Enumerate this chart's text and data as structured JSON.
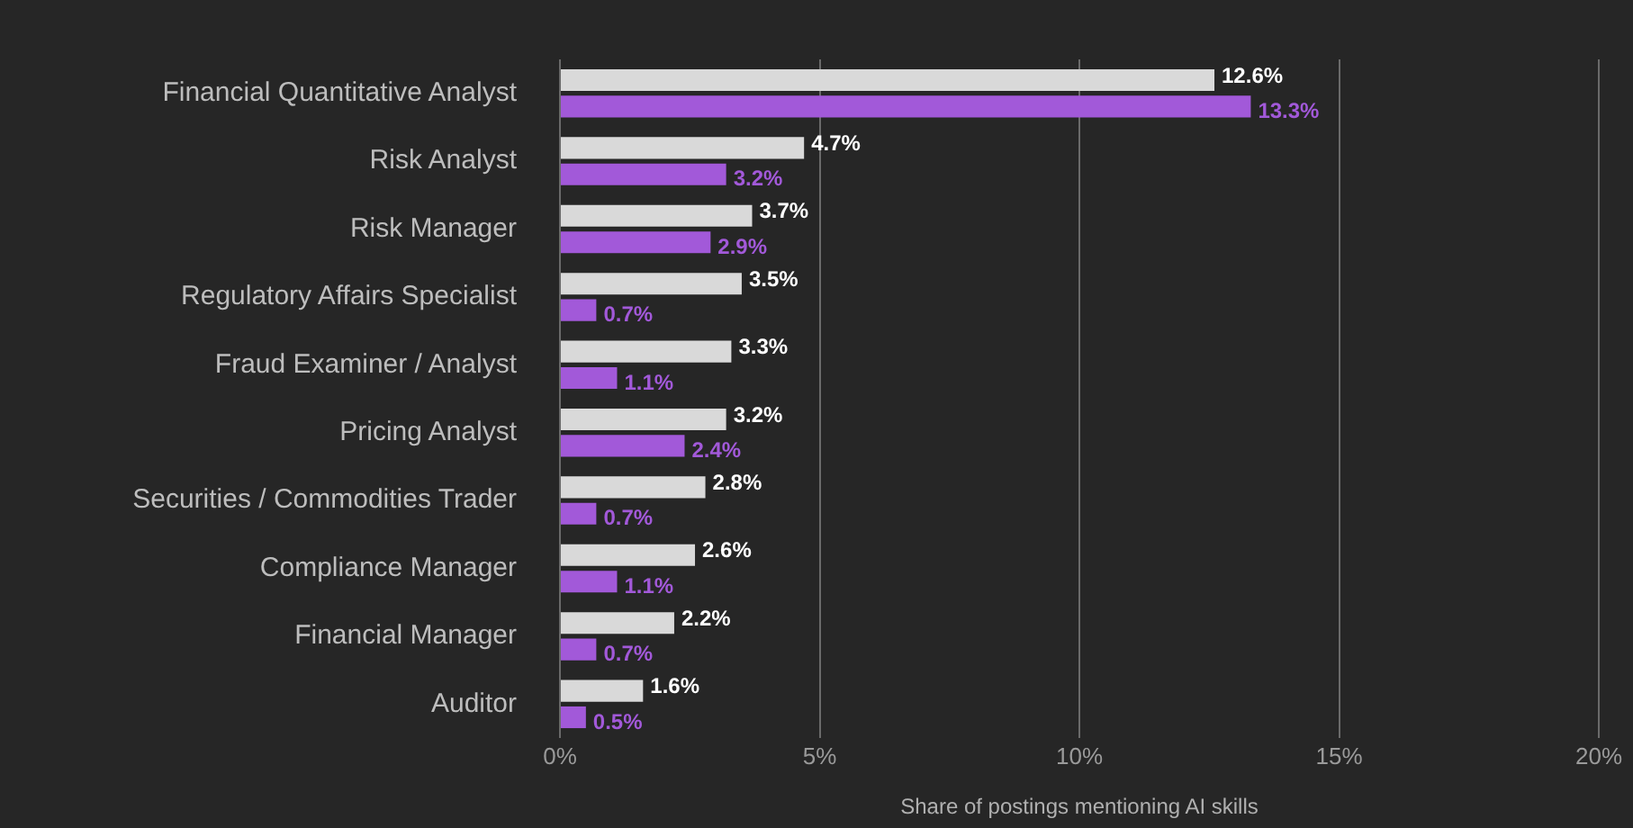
{
  "chart_data": {
    "type": "bar",
    "orientation": "horizontal",
    "xlabel": "Share of postings mentioning AI skills",
    "categories": [
      "Financial Quantitative Analyst",
      "Risk Analyst",
      "Risk Manager",
      "Regulatory Affairs Specialist",
      "Fraud Examiner / Analyst",
      "Pricing Analyst",
      "Securities / Commodities Trader",
      "Compliance Manager",
      "Financial Manager",
      "Auditor"
    ],
    "series": [
      {
        "color": "#d9d9d9",
        "values": [
          12.6,
          4.7,
          3.7,
          3.5,
          3.3,
          3.2,
          2.8,
          2.6,
          2.2,
          1.6
        ],
        "value_labels": [
          "12.6%",
          "4.7%",
          "3.7%",
          "3.5%",
          "3.3%",
          "3.2%",
          "2.8%",
          "2.6%",
          "2.2%",
          "1.6%"
        ]
      },
      {
        "color": "#a259d9",
        "values": [
          13.3,
          3.2,
          2.9,
          0.7,
          1.1,
          2.4,
          0.7,
          1.1,
          0.7,
          0.5
        ],
        "value_labels": [
          "13.3%",
          "3.2%",
          "2.9%",
          "0.7%",
          "1.1%",
          "2.4%",
          "0.7%",
          "1.1%",
          "0.7%",
          "0.5%"
        ]
      }
    ],
    "xlim": [
      0,
      20
    ],
    "xticks": [
      {
        "value": 0,
        "label": "0%"
      },
      {
        "value": 5,
        "label": "5%"
      },
      {
        "value": 10,
        "label": "10%"
      },
      {
        "value": 15,
        "label": "15%"
      },
      {
        "value": 20,
        "label": "20%"
      }
    ],
    "grid": "x",
    "legend": false
  }
}
